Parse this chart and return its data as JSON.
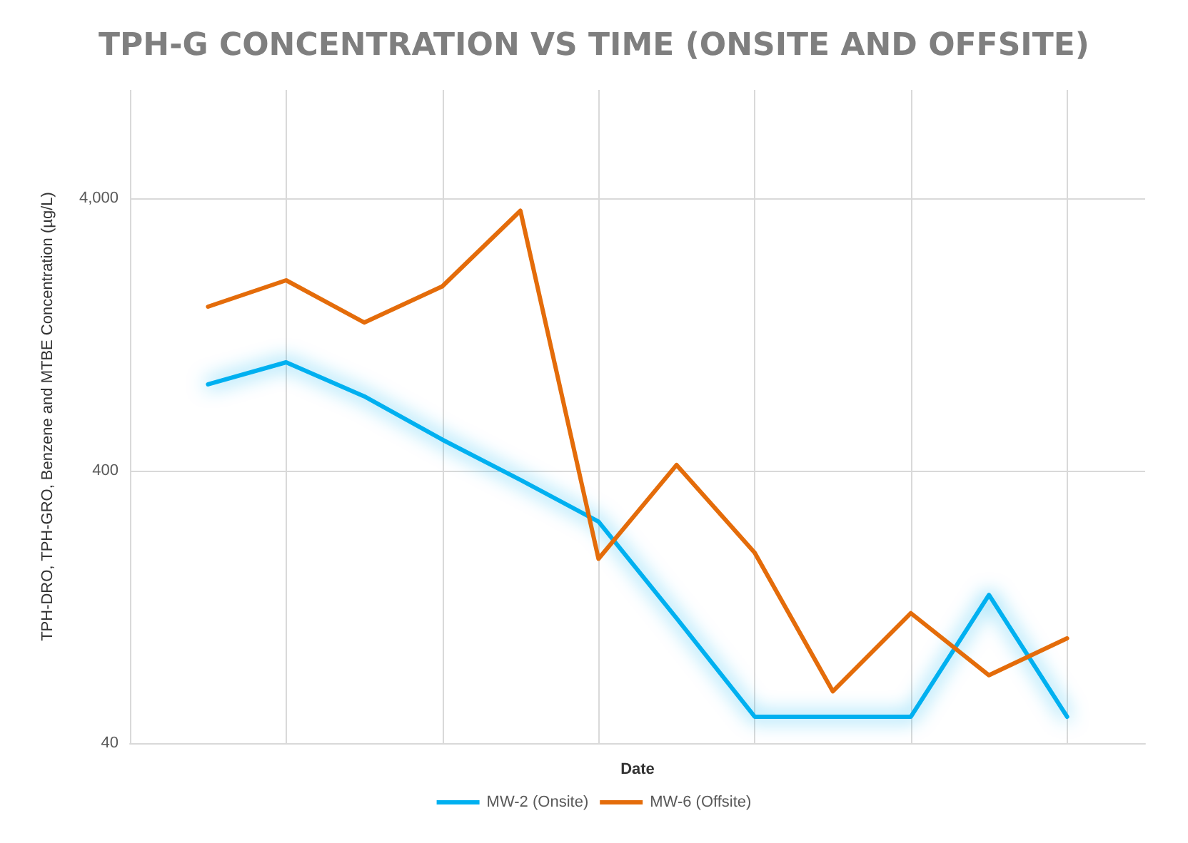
{
  "chart_data": {
    "type": "line",
    "title": "TPH-G CONCENTRATION VS TIME (ONSITE AND OFFSITE)",
    "xlabel": "Date",
    "ylabel": "TPH-DRO, TPH-GRO, Benzene and MTBE Concentration (µg/L)",
    "categories": [
      null,
      null,
      null,
      null,
      null,
      null,
      null,
      null,
      null,
      null,
      null,
      null,
      null,
      null
    ],
    "series": [
      {
        "name": "MW-2 (Onsite)",
        "color": "#00b0f0",
        "values": [
          null,
          830,
          1000,
          750,
          520,
          370,
          260,
          115,
          50,
          50,
          50,
          140,
          50,
          null
        ]
      },
      {
        "name": "MW-6 (Offsite)",
        "color": "#e46c0a",
        "values": [
          null,
          1600,
          2000,
          1400,
          1900,
          3600,
          190,
          420,
          200,
          62,
          120,
          71,
          97,
          null
        ]
      }
    ],
    "log": true,
    "ylim": [
      40,
      10000
    ],
    "yticks": [
      40,
      400,
      {
        "value": 4000,
        "label": "4,000"
      }
    ],
    "grid": true,
    "legend": "bottom",
    "marker": "none",
    "line_style": "solid"
  }
}
